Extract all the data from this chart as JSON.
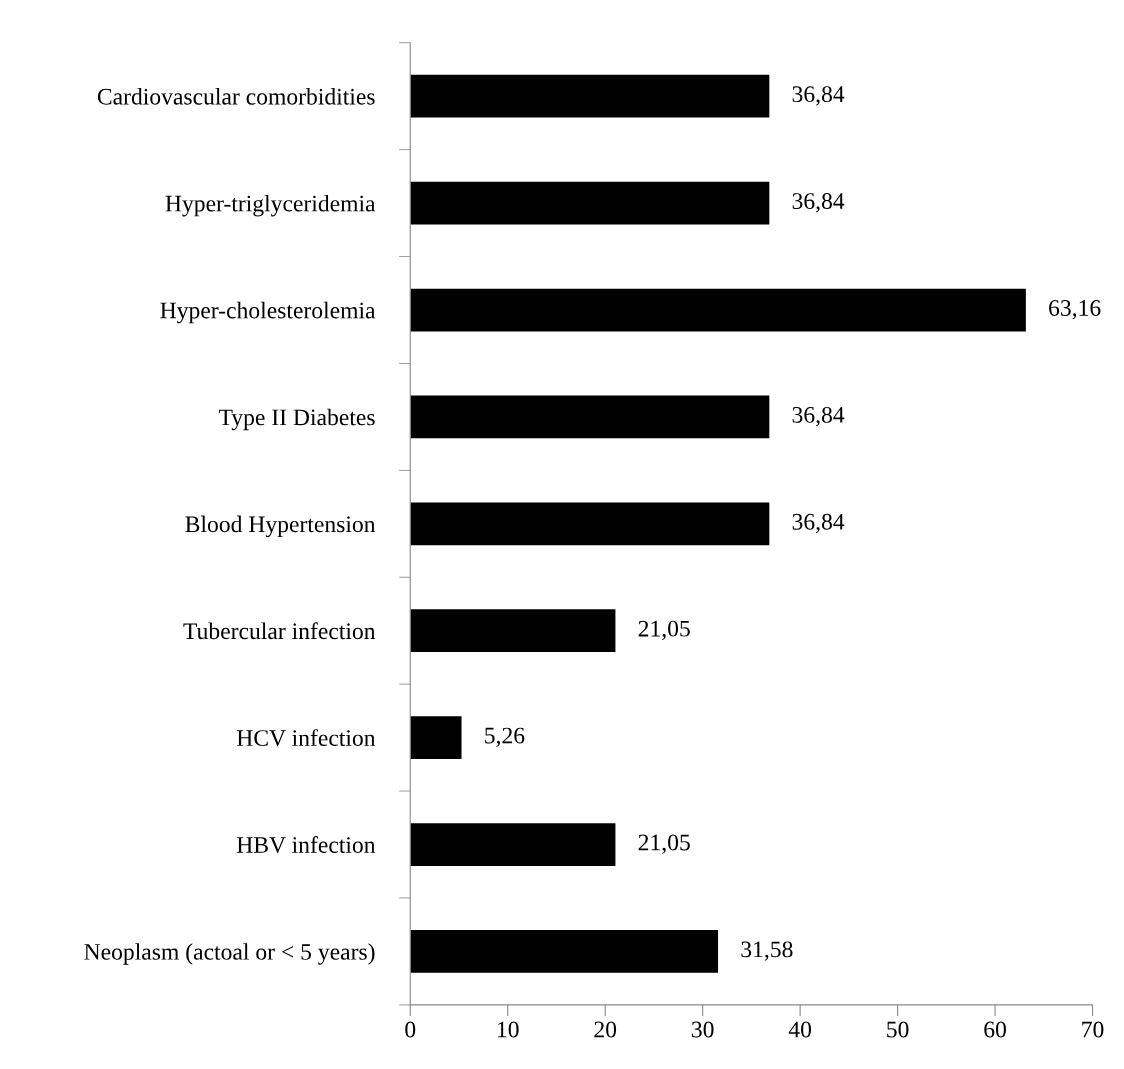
{
  "chart_data": {
    "type": "bar",
    "orientation": "horizontal",
    "categories": [
      "Cardiovascular comorbidities",
      "Hyper-triglyceridemia",
      "Hyper-cholesterolemia",
      "Type II Diabetes",
      "Blood Hypertension",
      "Tubercular infection",
      "HCV infection",
      "HBV infection",
      "Neoplasm (actoal or < 5 years)"
    ],
    "values": [
      36.84,
      36.84,
      63.16,
      36.84,
      36.84,
      21.05,
      5.26,
      21.05,
      31.58
    ],
    "value_labels": [
      "36,84",
      "36,84",
      "63,16",
      "36,84",
      "36,84",
      "21,05",
      "5,26",
      "21,05",
      "31,58"
    ],
    "color": "#000000",
    "xlim": [
      0,
      70
    ],
    "xticks": [
      0,
      10,
      20,
      30,
      40,
      50,
      60,
      70
    ],
    "grid": false,
    "legend": false
  }
}
